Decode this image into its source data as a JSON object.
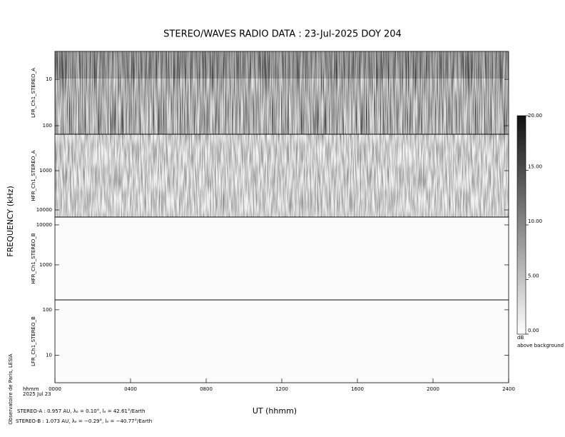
{
  "chart_data": {
    "type": "spectrogram",
    "title": "STEREO/WAVES  RADIO  DATA : 23-Jul-2025  DOY 204",
    "ylabel": "FREQUENCY (kHz)",
    "xlabel": "UT (hhmm)",
    "xlim": [
      0,
      2400
    ],
    "xticks": [
      {
        "value": 0,
        "label": "0000"
      },
      {
        "value": 400,
        "label": "0400"
      },
      {
        "value": 800,
        "label": "0800"
      },
      {
        "value": 1200,
        "label": "1200"
      },
      {
        "value": 1600,
        "label": "1600"
      },
      {
        "value": 2000,
        "label": "2000"
      },
      {
        "value": 2400,
        "label": "2400"
      }
    ],
    "x_corner_labels": [
      "hhmm",
      "2025 Jul 23"
    ],
    "log_y": true,
    "panels": [
      {
        "name": "LFR_Ch1_STEREO_A",
        "ylim": [
          2.5,
          153
        ],
        "yticks": [
          10,
          100
        ]
      },
      {
        "name": "HFR_Ch1_STEREO_A",
        "ylim": [
          118,
          15200
        ],
        "yticks": [
          1000,
          10000
        ]
      },
      {
        "name": "HFR_Ch1_STEREO_B",
        "ylim": [
          15700,
          133
        ],
        "yticks": [
          10000,
          1000
        ]
      },
      {
        "name": "LFR_Ch1_STEREO_B",
        "ylim": [
          165,
          2.5
        ],
        "yticks": [
          100,
          10
        ]
      }
    ],
    "colorbar": {
      "ylim": [
        0,
        20
      ],
      "yticks": [
        {
          "value": 0,
          "label": "0.00"
        },
        {
          "value": 5,
          "label": "5.00"
        },
        {
          "value": 10,
          "label": "10.00"
        },
        {
          "value": 15,
          "label": "15.00"
        },
        {
          "value": 20,
          "label": "20.00"
        }
      ],
      "label": [
        "dB",
        "above background"
      ]
    },
    "credit": "Observatoire de Paris, LESIA",
    "footnotes": [
      "STEREO-A : 0.957 AU, λₑ = 0.10°, lₑ = 42.61°/Earth",
      "STEREO-B : 1.073 AU, λₑ = −0.29°, lₑ = −40.77°/Earth"
    ]
  }
}
